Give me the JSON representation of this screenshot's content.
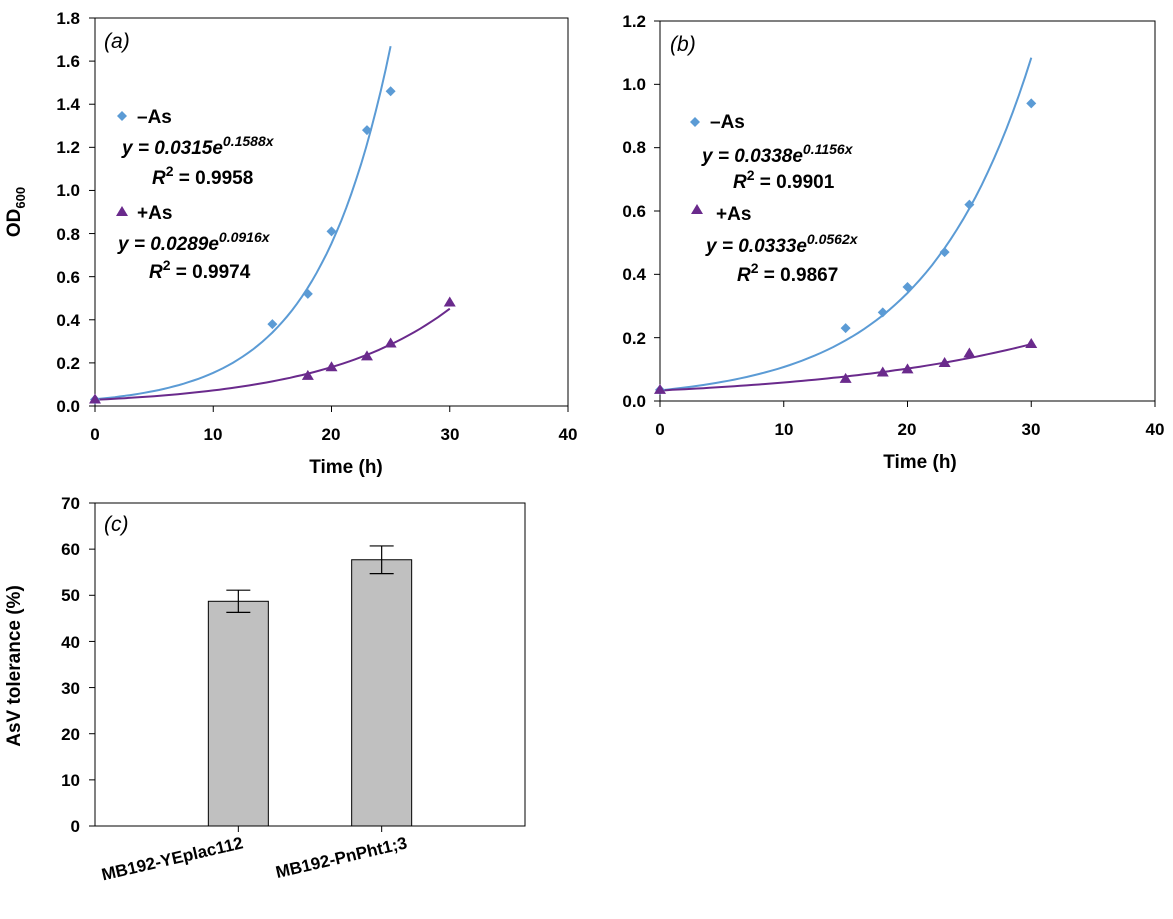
{
  "colors": {
    "minus_as": "#5b9bd5",
    "plus_as": "#6a2a8c",
    "bar": "#c0c0c0",
    "axis": "#000000"
  },
  "chart_data": [
    {
      "id": "a",
      "type": "scatter",
      "panel_label": "a",
      "xlabel": "Time (h)",
      "ylabel": "OD",
      "ylabel_sub": "600",
      "xlim": [
        0,
        40
      ],
      "ylim": [
        0,
        1.8
      ],
      "xticks": [
        "0",
        "10",
        "20",
        "30",
        "40"
      ],
      "yticks": [
        "0.0",
        "0.2",
        "0.4",
        "0.6",
        "0.8",
        "1.0",
        "1.2",
        "1.4",
        "1.6",
        "1.8"
      ],
      "series": [
        {
          "name": "–As",
          "marker": "diamond",
          "color": "#5b9bd5",
          "x": [
            0,
            15,
            18,
            20,
            23,
            25
          ],
          "y": [
            0.03,
            0.38,
            0.52,
            0.81,
            1.28,
            1.46
          ],
          "fit": {
            "a": 0.0315,
            "b": 0.1588,
            "x_range": [
              0,
              25
            ]
          },
          "equation": {
            "prefix": "y = 0.0315e",
            "exp": "0.1588x",
            "r2_label": "R",
            "r2_sup": "2",
            "r2_value": " = 0.9958"
          }
        },
        {
          "name": "+As",
          "marker": "triangle",
          "color": "#6a2a8c",
          "x": [
            0,
            18,
            20,
            23,
            25,
            30
          ],
          "y": [
            0.03,
            0.14,
            0.18,
            0.23,
            0.29,
            0.48
          ],
          "fit": {
            "a": 0.0289,
            "b": 0.0916,
            "x_range": [
              0,
              30
            ]
          },
          "equation": {
            "prefix": "y = 0.0289e",
            "exp": "0.0916x",
            "r2_label": "R",
            "r2_sup": "2",
            "r2_value": " = 0.9974"
          }
        }
      ]
    },
    {
      "id": "b",
      "type": "scatter",
      "panel_label": "b",
      "xlabel": "Time (h)",
      "ylabel": "",
      "xlim": [
        0,
        40
      ],
      "ylim": [
        0,
        1.2
      ],
      "xticks": [
        "0",
        "10",
        "20",
        "30",
        "40"
      ],
      "yticks": [
        "0.0",
        "0.2",
        "0.4",
        "0.6",
        "0.8",
        "1.0",
        "1.2"
      ],
      "series": [
        {
          "name": "–As",
          "marker": "diamond",
          "color": "#5b9bd5",
          "x": [
            0,
            15,
            18,
            20,
            23,
            25,
            30
          ],
          "y": [
            0.035,
            0.23,
            0.28,
            0.36,
            0.47,
            0.62,
            0.94
          ],
          "fit": {
            "a": 0.0338,
            "b": 0.1156,
            "x_range": [
              0,
              30
            ]
          },
          "equation": {
            "prefix": "y = 0.0338e",
            "exp": "0.1156x",
            "r2_label": "R",
            "r2_sup": "2",
            "r2_value": " = 0.9901"
          }
        },
        {
          "name": "+As",
          "marker": "triangle",
          "color": "#6a2a8c",
          "x": [
            0,
            15,
            18,
            20,
            23,
            25,
            30
          ],
          "y": [
            0.035,
            0.07,
            0.09,
            0.1,
            0.12,
            0.15,
            0.18
          ],
          "fit": {
            "a": 0.0333,
            "b": 0.0562,
            "x_range": [
              0,
              30
            ]
          },
          "equation": {
            "prefix": "y = 0.0333e",
            "exp": "0.0562x",
            "r2_label": "R",
            "r2_sup": "2",
            "r2_value": " = 0.9867"
          }
        }
      ]
    },
    {
      "id": "c",
      "type": "bar",
      "panel_label": "c",
      "xlabel": "",
      "ylabel": "AsV tolerance (%)",
      "ylim": [
        0,
        70
      ],
      "yticks": [
        "0",
        "10",
        "20",
        "30",
        "40",
        "50",
        "60",
        "70"
      ],
      "categories": [
        "MB192-YEplac112",
        "MB192-PnPht1;3"
      ],
      "values": [
        48.7,
        57.7
      ],
      "errors": [
        2.4,
        3.0
      ]
    }
  ]
}
